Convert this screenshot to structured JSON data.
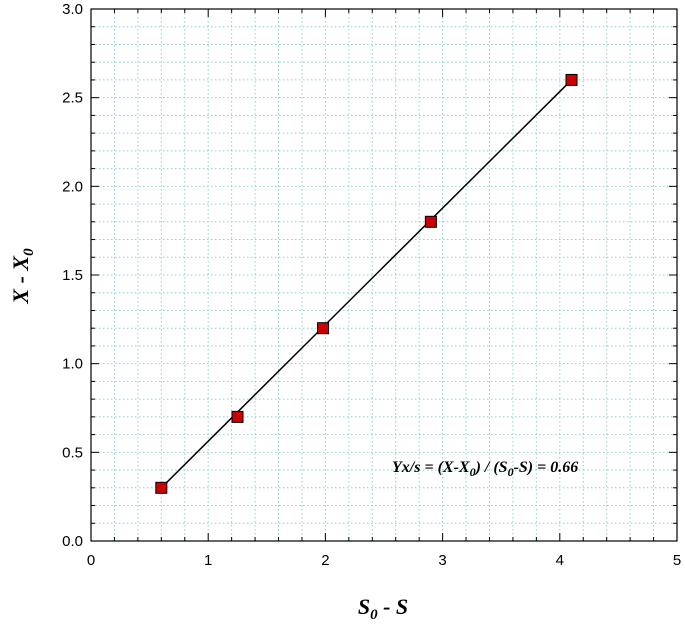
{
  "chart_data": {
    "type": "scatter",
    "x": [
      0.6,
      1.25,
      1.98,
      2.9,
      4.1
    ],
    "y": [
      0.3,
      0.7,
      1.2,
      1.8,
      2.6
    ],
    "fit_line": {
      "x": [
        0.6,
        4.1
      ],
      "y": [
        0.3,
        2.6
      ]
    },
    "xlim": [
      0,
      5
    ],
    "ylim": [
      0,
      3
    ],
    "xticks": [
      "0",
      "1",
      "2",
      "3",
      "4",
      "5"
    ],
    "yticks": [
      "0.0",
      "0.5",
      "1.0",
      "1.5",
      "2.0",
      "2.5",
      "3.0"
    ],
    "xlabel": {
      "main": "S",
      "sub": "0",
      "rest": " - S"
    },
    "ylabel": {
      "main": "X - X",
      "sub": "0"
    },
    "annotation": {
      "p1": "Yx/s = (X-X",
      "s1": "0",
      "p2": ") / (S",
      "s2": "0",
      "p3": "-S) = 0.66"
    },
    "grid": true,
    "marker_color": "#cc0000",
    "grid_color": "#7fd6d6"
  }
}
